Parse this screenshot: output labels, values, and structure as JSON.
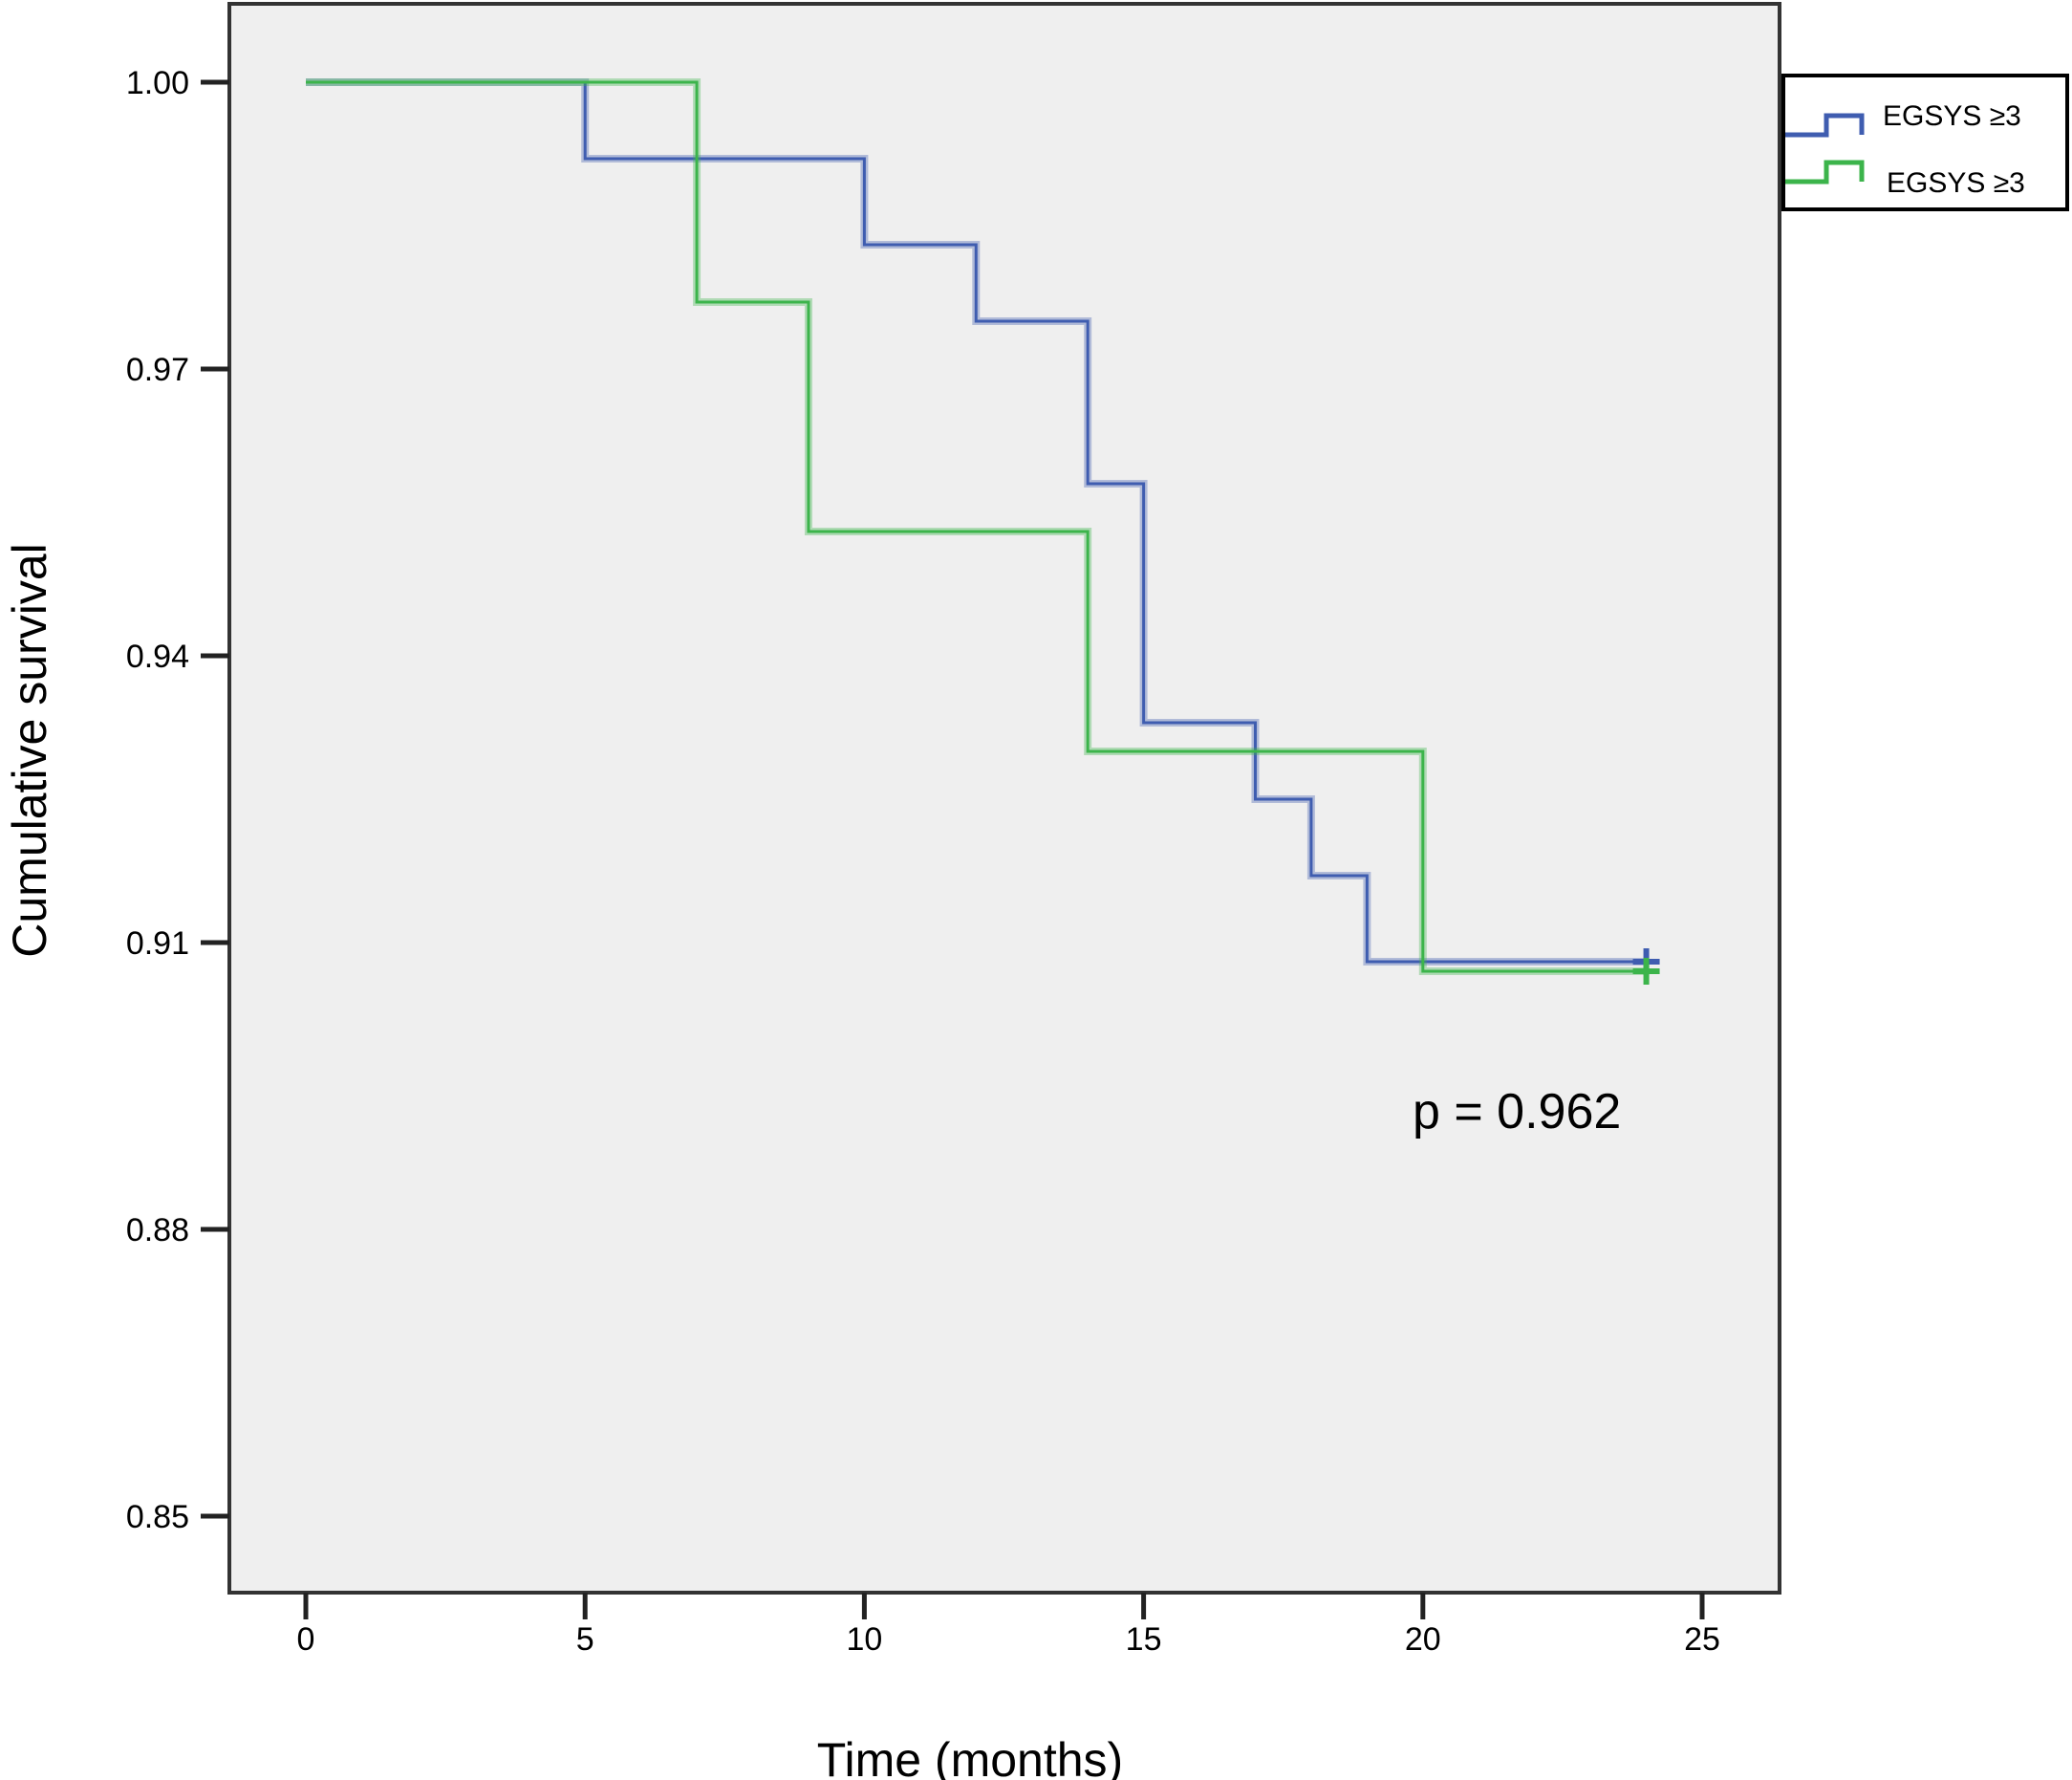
{
  "chart_data": {
    "type": "line",
    "subtype": "kaplan-meier step",
    "title": "",
    "xlabel": "Time (months)",
    "ylabel": "Cumulative survival",
    "xlim": [
      0,
      25
    ],
    "ylim": [
      0.85,
      1.0
    ],
    "xticks": [
      "0",
      "5",
      "10",
      "15",
      "20",
      "25"
    ],
    "yticks": [
      "1.00",
      "0.97",
      "0.94",
      "0.91",
      "0.88",
      "0.85"
    ],
    "grid": false,
    "legend_position": "top-right, outside",
    "annotation": "p = 0.962",
    "series": [
      {
        "name": "EGSYS ≥3",
        "color": "#3f5db0",
        "x": [
          0,
          5,
          10,
          12,
          14,
          15,
          17,
          18,
          19,
          24
        ],
        "y": [
          1.0,
          0.992,
          0.983,
          0.975,
          0.958,
          0.933,
          0.925,
          0.917,
          0.908,
          0.908
        ],
        "censored_at": [
          24
        ]
      },
      {
        "name": "EGSYS ≥3",
        "color": "#3cb44b",
        "x": [
          0,
          7,
          9,
          14,
          20,
          24
        ],
        "y": [
          1.0,
          0.977,
          0.953,
          0.93,
          0.907,
          0.907
        ],
        "censored_at": [
          24
        ]
      }
    ]
  }
}
